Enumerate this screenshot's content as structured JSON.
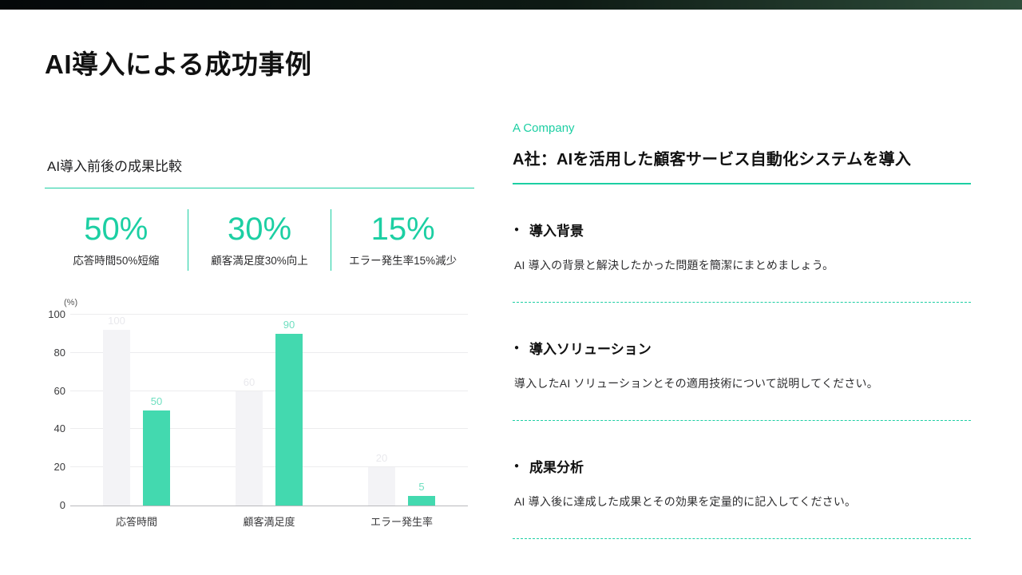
{
  "accent_color": "#1ccfa3",
  "title": "AI導入による成功事例",
  "left": {
    "section_title": "AI導入前後の成果比較",
    "stats": [
      {
        "value": "50%",
        "label": "応答時間50%短縮"
      },
      {
        "value": "30%",
        "label": "顧客満足度30%向上"
      },
      {
        "value": "15%",
        "label": "エラー発生率15%減少"
      }
    ]
  },
  "chart_data": {
    "type": "bar",
    "categories": [
      "応答時間",
      "顧客満足度",
      "エラー発生率"
    ],
    "series": [
      {
        "name": "before",
        "color": "#f3f3f6",
        "label_color": "#e9e9ed",
        "values": [
          100,
          60,
          20
        ]
      },
      {
        "name": "after",
        "color": "#43d9af",
        "label_color": "#6fdfc0",
        "values": [
          50,
          90,
          5
        ]
      }
    ],
    "ylabel": "(%)",
    "ylim": [
      0,
      100
    ],
    "yticks": [
      0,
      20,
      40,
      60,
      80,
      100
    ],
    "grid": true,
    "legend": "none"
  },
  "right": {
    "company": "A Company",
    "heading": "A社：AIを活用した顧客サービス自動化システムを導入",
    "sections": [
      {
        "title": "導入背景",
        "body": "AI 導入の背景と解決したかった問題を簡潔にまとめましょう。"
      },
      {
        "title": "導入ソリューション",
        "body": "導入したAI ソリューションとその適用技術について説明してください。"
      },
      {
        "title": "成果分析",
        "body": "AI 導入後に達成した成果とその効果を定量的に記入してください。"
      }
    ]
  }
}
